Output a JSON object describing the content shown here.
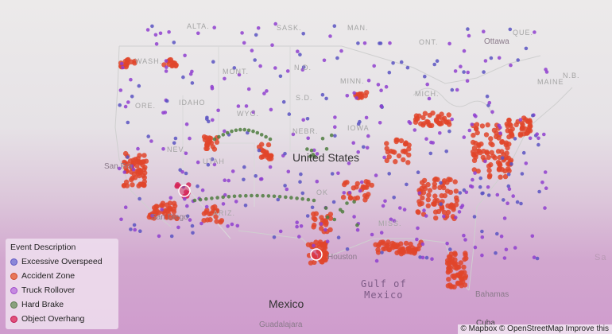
{
  "labels": {
    "country_us": "United States",
    "country_mexico": "Mexico",
    "country_cuba": "Cuba",
    "gulf_line1": "Gulf of",
    "gulf_line2": "Mexico",
    "city_sanfran": "San Fra",
    "city_sandiego": "San Diego",
    "city_houston": "Houston",
    "city_guadalajara": "Guadalajara",
    "city_bahamas": "Bahamas",
    "city_ottawa": "Ottawa",
    "prov_que": "QUE.",
    "prov_ont": "ONT.",
    "prov_man": "MAN.",
    "prov_sask": "SASK.",
    "prov_alta": "ALTA.",
    "prov_nb": "N.B.",
    "st_wash": "WASH.",
    "st_ore": "ORE.",
    "st_idaho": "IDAHO",
    "st_mont": "MONT.",
    "st_wyo": "WYO.",
    "st_nev": "NEV.",
    "st_utah": "UTAH",
    "st_ariz": "ARIZ.",
    "st_nd": "N.D.",
    "st_sd": "S.D.",
    "st_nebr": "NEBR.",
    "st_iowa": "IOWA",
    "st_minn": "MINN.",
    "st_mich": "MICH.",
    "st_ok": "OK",
    "st_miss": "MISS.",
    "st_maine": "MAINE",
    "atl_sa": "Sa"
  },
  "legend": {
    "title": "Event Description",
    "items": [
      {
        "label": "Excessive Overspeed",
        "fill": "#8a86d8",
        "stroke": "#5b54c2"
      },
      {
        "label": "Accident Zone",
        "fill": "#e8765a",
        "stroke": "#cf4a2c"
      },
      {
        "label": "Truck Rollover",
        "fill": "#c58ae0",
        "stroke": "#a04ccc"
      },
      {
        "label": "Hard Brake",
        "fill": "#8aa07e",
        "stroke": "#5a7a4e"
      },
      {
        "label": "Object Overhang",
        "fill": "#e0507a",
        "stroke": "#c01a55"
      }
    ]
  },
  "attribution": "© Mapbox © OpenStreetMap Improve this",
  "colors": {
    "excessive_overspeed": "#5b54c2",
    "accident_zone": "#e0452a",
    "truck_rollover": "#8f3fcf",
    "hard_brake": "#4f7d3f",
    "object_overhang": "#d6285a"
  }
}
